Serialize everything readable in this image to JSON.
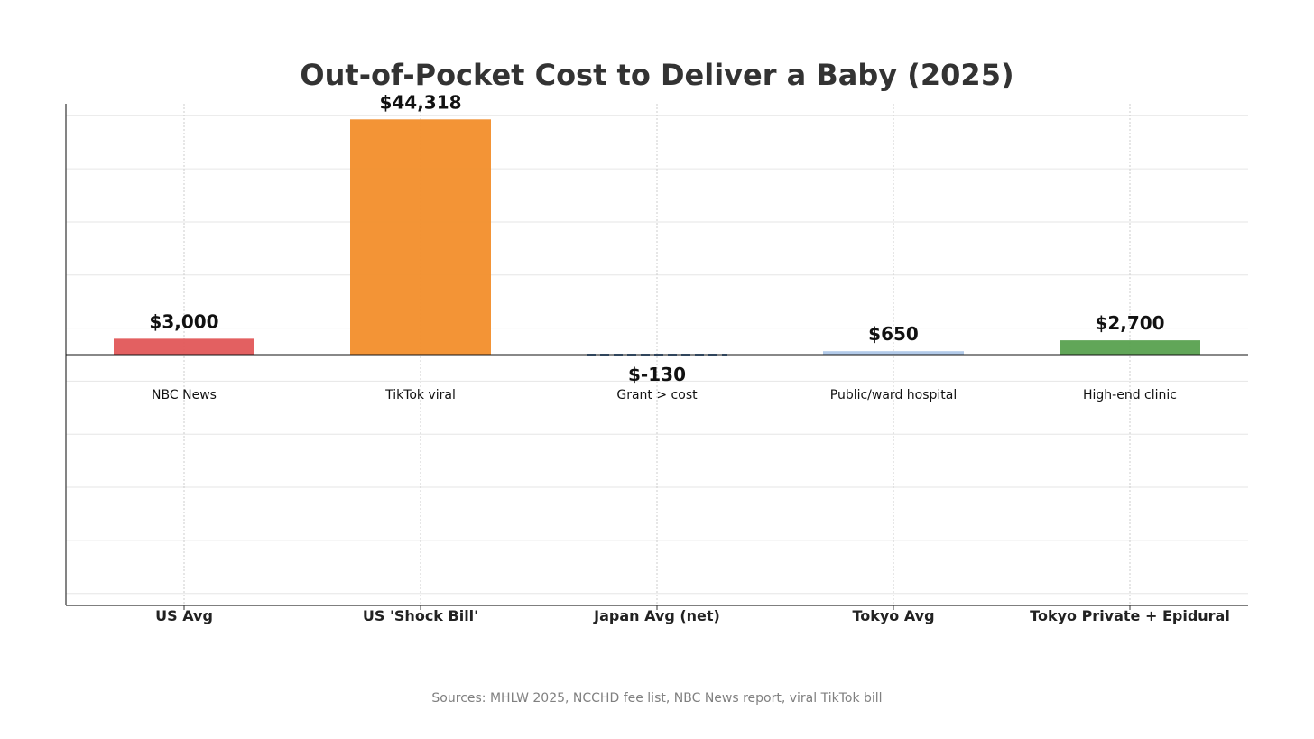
{
  "chart_data": {
    "type": "bar",
    "title": "Out-of-Pocket Cost to Deliver a Baby (2025)",
    "xlabel": "",
    "ylabel": "",
    "ylim": [
      -49000,
      46500
    ],
    "grid": true,
    "categories": [
      "US Avg",
      "US 'Shock Bill'",
      "Japan Avg (net)",
      "Tokyo Avg",
      "Tokyo Private + Epidural"
    ],
    "values": [
      3000,
      44318,
      -130,
      650,
      2700
    ],
    "value_labels": [
      "$3,000",
      "$44,318",
      "$-130",
      "$650",
      "$2,700"
    ],
    "notes": [
      "NBC News",
      "TikTok viral",
      "Grant > cost",
      "Public/ward hospital",
      "High-end clinic"
    ],
    "colors": [
      "#e15759",
      "#f28e2b",
      "#4e79a7",
      "#aec7e8",
      "#59a14f"
    ],
    "source": "Sources: MHLW 2025, NCCHD fee list, NBC News report, viral TikTok bill"
  }
}
